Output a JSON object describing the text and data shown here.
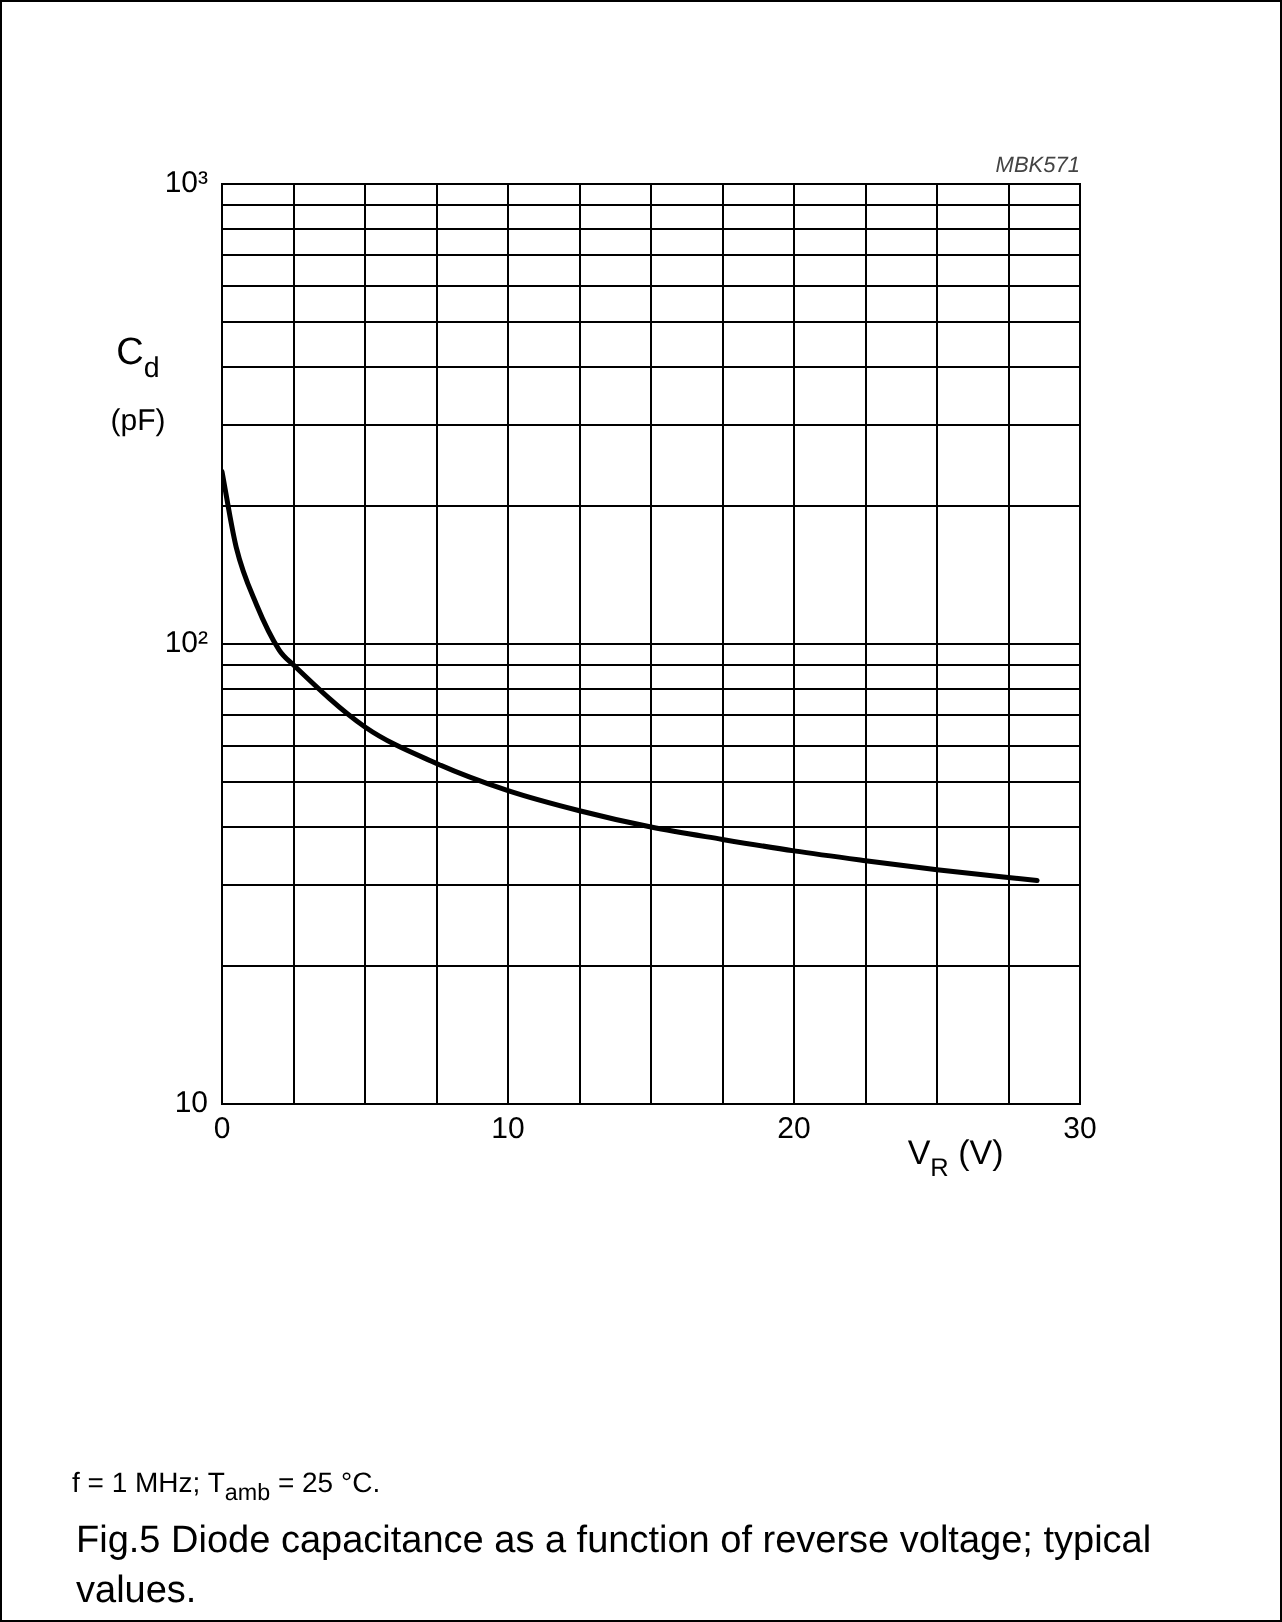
{
  "chart_data": {
    "type": "line",
    "title": "Fig.5 Diode capacitance as a function of reverse voltage; typical values.",
    "xlabel": "V$_{R}$ (V)",
    "ylabel": "C$_{d}$ (pF)",
    "annotations": [
      "MBK571",
      "f = 1 MHz; T$_{amb}$ = 25 °C."
    ],
    "x": [
      0,
      0.5,
      1.2,
      2,
      2.5,
      5,
      7.5,
      10,
      12.5,
      15,
      17.5,
      20,
      22.5,
      25,
      28.5
    ],
    "series": [
      {
        "color": "#000000",
        "values": [
          237,
          162,
          122,
          97,
          90,
          66,
          55,
          48,
          43.4,
          40,
          37.6,
          35.5,
          33.8,
          32.3,
          30.6
        ]
      }
    ],
    "log": "y",
    "grid": true,
    "marker": "none",
    "line_style": "solid",
    "legend": false,
    "xlim": [
      0,
      30
    ],
    "xticks": [
      0,
      {
        "value": 2.5,
        "label": null
      },
      {
        "value": 5,
        "label": null
      },
      {
        "value": 7.5,
        "label": null
      },
      10,
      {
        "value": 12.5,
        "label": null
      },
      {
        "value": 15,
        "label": null
      },
      {
        "value": 17.5,
        "label": null
      },
      20,
      {
        "value": 22.5,
        "label": null
      },
      {
        "value": 25,
        "label": null
      },
      {
        "value": 27.5,
        "label": null
      },
      30
    ],
    "ylim": [
      10,
      1000
    ],
    "yticks": [
      10,
      {
        "value": 20,
        "label": null
      },
      {
        "value": 30,
        "label": null
      },
      {
        "value": 40,
        "label": null
      },
      {
        "value": 50,
        "label": null
      },
      {
        "value": 60,
        "label": null
      },
      {
        "value": 70,
        "label": null
      },
      {
        "value": 80,
        "label": null
      },
      {
        "value": 90,
        "label": null
      },
      {
        "value": 100,
        "label": "10²"
      },
      {
        "value": 200,
        "label": null
      },
      {
        "value": 300,
        "label": null
      },
      {
        "value": 400,
        "label": null
      },
      {
        "value": 500,
        "label": null
      },
      {
        "value": 600,
        "label": null
      },
      {
        "value": 700,
        "label": null
      },
      {
        "value": 800,
        "label": null
      },
      {
        "value": 900,
        "label": null
      },
      {
        "value": 1000,
        "label": "10³"
      }
    ]
  }
}
